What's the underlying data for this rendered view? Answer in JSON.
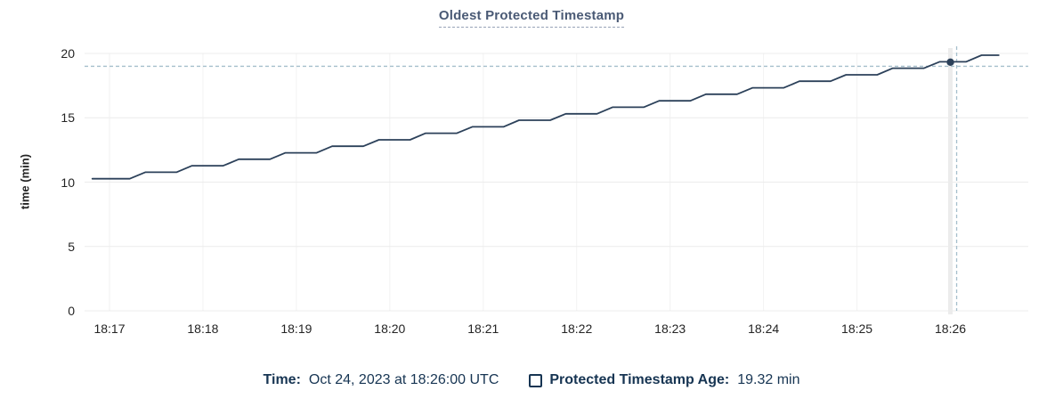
{
  "chart_data": {
    "type": "line",
    "title": "Oldest Protected Timestamp",
    "xlabel": "",
    "ylabel": "time (min)",
    "ylim": [
      0,
      20
    ],
    "yticks": [
      0,
      5,
      10,
      15,
      20
    ],
    "x_unit": "seconds after 18:17:00",
    "xlim_sec": [
      -16,
      590
    ],
    "grid": true,
    "legend_position": "bottom",
    "x_axis": {
      "tick_labels": [
        "18:17",
        "18:18",
        "18:19",
        "18:20",
        "18:21",
        "18:22",
        "18:23",
        "18:24",
        "18:25",
        "18:26"
      ],
      "tick_seconds": [
        0,
        60,
        120,
        180,
        240,
        300,
        360,
        420,
        480,
        540
      ]
    },
    "series": [
      {
        "name": "Protected Timestamp Age",
        "unit": "min",
        "points": [
          [
            -11,
            10.26
          ],
          [
            13,
            10.26
          ],
          [
            23,
            10.77
          ],
          [
            43,
            10.77
          ],
          [
            53,
            11.27
          ],
          [
            73,
            11.27
          ],
          [
            83,
            11.78
          ],
          [
            103,
            11.78
          ],
          [
            113,
            12.28
          ],
          [
            133,
            12.28
          ],
          [
            143,
            12.79
          ],
          [
            163,
            12.79
          ],
          [
            173,
            13.29
          ],
          [
            193,
            13.29
          ],
          [
            203,
            13.8
          ],
          [
            223,
            13.8
          ],
          [
            233,
            14.3
          ],
          [
            253,
            14.3
          ],
          [
            263,
            14.81
          ],
          [
            283,
            14.81
          ],
          [
            293,
            15.31
          ],
          [
            313,
            15.31
          ],
          [
            323,
            15.82
          ],
          [
            343,
            15.82
          ],
          [
            353,
            16.32
          ],
          [
            373,
            16.32
          ],
          [
            383,
            16.83
          ],
          [
            403,
            16.83
          ],
          [
            413,
            17.33
          ],
          [
            433,
            17.33
          ],
          [
            443,
            17.84
          ],
          [
            463,
            17.84
          ],
          [
            473,
            18.34
          ],
          [
            493,
            18.34
          ],
          [
            503,
            18.85
          ],
          [
            523,
            18.85
          ],
          [
            533,
            19.35
          ],
          [
            550,
            19.35
          ],
          [
            560,
            19.86
          ],
          [
            571,
            19.86
          ]
        ]
      }
    ],
    "hover": {
      "vline_sec": 544,
      "hline_value": 19.0,
      "dot": {
        "x_sec": 540,
        "value": 19.32
      }
    }
  },
  "legend": {
    "time_label": "Time:",
    "time_value": "Oct 24, 2023 at 18:26:00 UTC",
    "series_label": "Protected Timestamp Age:",
    "series_value": "19.32 min"
  },
  "colors": {
    "line": "#2c415a",
    "title": "#4a5a75",
    "title_underline": "#97a3b7",
    "legend_text": "#173553",
    "axis_text": "#242424",
    "grid_major": "#ececec",
    "grid_minor": "#f2f2f2",
    "crosshair": "#a6bfcc",
    "hover_band": "#ececec",
    "background": "#ffffff"
  }
}
